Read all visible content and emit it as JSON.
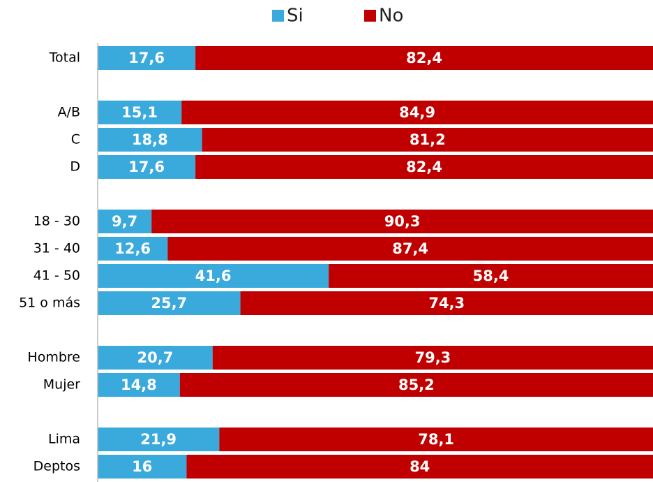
{
  "chart_data": {
    "type": "stacked_barh",
    "categories": [
      "Total",
      null,
      "A/B",
      "C",
      "D",
      null,
      "18 - 30",
      "31 - 40",
      "41 - 50",
      "51 o más",
      null,
      "Hombre",
      "Mujer",
      null,
      "Lima",
      "Deptos"
    ],
    "series": [
      {
        "name": "Si",
        "color": "#3aa9dc",
        "values": [
          17.6,
          null,
          15.1,
          18.8,
          17.6,
          null,
          9.7,
          12.6,
          41.6,
          25.7,
          null,
          20.7,
          14.8,
          null,
          21.9,
          16
        ],
        "value_labels": [
          "17,6",
          null,
          "15,1",
          "18,8",
          "17,6",
          null,
          "9,7",
          "12,6",
          "41,6",
          "25,7",
          null,
          "20,7",
          "14,8",
          null,
          "21,9",
          "16"
        ]
      },
      {
        "name": "No",
        "color": "#c00000",
        "values": [
          82.4,
          null,
          84.9,
          81.2,
          82.4,
          null,
          90.3,
          87.4,
          58.4,
          74.3,
          null,
          79.3,
          85.2,
          null,
          78.1,
          84
        ],
        "value_labels": [
          "82,4",
          null,
          "84,9",
          "81,2",
          "82,4",
          null,
          "90,3",
          "87,4",
          "58,4",
          "74,3",
          null,
          "79,3",
          "85,2",
          null,
          "78,1",
          "84"
        ]
      }
    ],
    "xlim": [
      0,
      100
    ],
    "legend": "top"
  }
}
